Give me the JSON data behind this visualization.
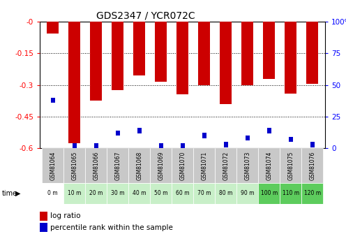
{
  "title": "GDS2347 / YCR072C",
  "samples": [
    "GSM81064",
    "GSM81065",
    "GSM81066",
    "GSM81067",
    "GSM81068",
    "GSM81069",
    "GSM81070",
    "GSM81071",
    "GSM81072",
    "GSM81073",
    "GSM81074",
    "GSM81075",
    "GSM81076"
  ],
  "time_labels": [
    "0 m",
    "10 m",
    "20 m",
    "30 m",
    "40 m",
    "50 m",
    "60 m",
    "70 m",
    "80 m",
    "90 m",
    "100 m",
    "110 m",
    "120 m"
  ],
  "log_ratio": [
    -0.055,
    -0.575,
    -0.375,
    -0.325,
    -0.255,
    -0.285,
    -0.345,
    -0.3,
    -0.39,
    -0.3,
    -0.27,
    -0.34,
    -0.295
  ],
  "percentile_rank": [
    38,
    2,
    2,
    12,
    14,
    2,
    2,
    10,
    3,
    8,
    14,
    7,
    3
  ],
  "bar_color": "#cc0000",
  "pct_color": "#0000cc",
  "ylim_left": [
    -0.6,
    0.0
  ],
  "yticks_left": [
    0.0,
    -0.15,
    -0.3,
    -0.45,
    -0.6
  ],
  "ytick_labels_left": [
    "-0",
    "-0.15",
    "-0.3",
    "-0.45",
    "-0.6"
  ],
  "ytick_labels_right": [
    "100%",
    "75",
    "50",
    "25",
    "0"
  ],
  "sample_bg": "#c8c8c8",
  "time_bg_colors": [
    "#ffffff",
    "#c8efc8",
    "#c8efc8",
    "#c8efc8",
    "#c8efc8",
    "#c8efc8",
    "#c8efc8",
    "#c8efc8",
    "#c8efc8",
    "#c8efc8",
    "#5dcc5d",
    "#5dcc5d",
    "#5dcc5d"
  ],
  "legend_log_ratio": "log ratio",
  "legend_pct": "percentile rank within the sample"
}
